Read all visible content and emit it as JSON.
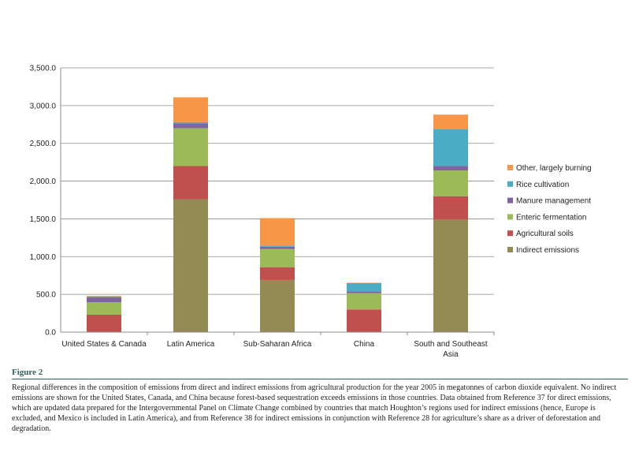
{
  "chart_data": {
    "type": "bar",
    "stacked": true,
    "categories": [
      "United States & Canada",
      "Latin America",
      "Sub-Saharan Africa",
      "China",
      "South and Southeast Asia"
    ],
    "series": [
      {
        "name": "Indirect emissions",
        "color": "#948a54",
        "values": [
          0,
          1760,
          690,
          0,
          1490
        ]
      },
      {
        "name": "Agricultural soils",
        "color": "#c0504d",
        "values": [
          230,
          440,
          170,
          300,
          310
        ]
      },
      {
        "name": "Enteric fermentation",
        "color": "#9bbb59",
        "values": [
          165,
          500,
          240,
          215,
          340
        ]
      },
      {
        "name": "Manure management",
        "color": "#8064a2",
        "values": [
          65,
          65,
          30,
          25,
          60
        ]
      },
      {
        "name": "Rice cultivation",
        "color": "#4bacc6",
        "values": [
          5,
          15,
          15,
          110,
          485
        ]
      },
      {
        "name": "Other, largely burning",
        "color": "#f79646",
        "values": [
          15,
          330,
          365,
          5,
          195
        ]
      }
    ],
    "ylim": [
      0,
      3500
    ],
    "yticks": [
      "0.0",
      "500.0",
      "1,000.0",
      "1,500.0",
      "2,000.0",
      "2,500.0",
      "3,000.0",
      "3,500.0"
    ],
    "grid": true,
    "legend": "right"
  },
  "figure": {
    "label": "Figure 2",
    "caption": "Regional differences in the composition of emissions from direct and indirect emissions from agricultural production for the year 2005 in megatonnes of carbon dioxide equivalent. No indirect emissions are shown for the United States, Canada, and China because forest-based sequestration exceeds emissions in those countries. Data obtained from Reference 37 for direct emissions, which are updated data prepared for the Intergovernmental Panel on Climate Change combined by countries that match Houghton’s regions used for indirect emissions (hence, Europe is excluded, and Mexico is included in Latin America), and from Reference 38 for indirect emissions in conjunction with Reference 28 for agriculture’s share as a driver of deforestation and degradation."
  }
}
